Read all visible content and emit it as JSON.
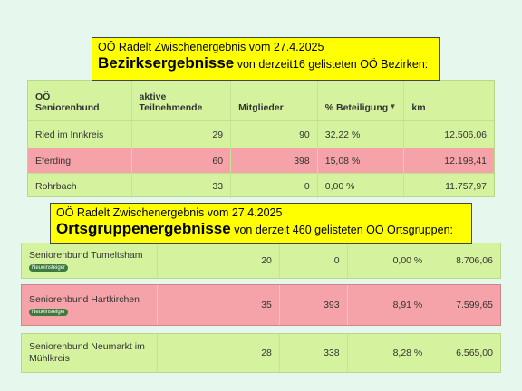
{
  "banner_district": {
    "line1": "OÖ Radelt Zwischenergebnis vom 27.4.2025",
    "title": "Bezirksergebnisse",
    "subtitle": " von derzeit16 gelisteten OÖ Bezirken:"
  },
  "district_table": {
    "headers": [
      "OÖ\nSeniorenbund",
      "aktive\nTeilnehmende",
      "Mitglieder",
      "% Beteiligung",
      "km"
    ],
    "rows": [
      {
        "name": "Ried im Innkreis",
        "aktive": "29",
        "mitglieder": "90",
        "beteiligung": "32,22 %",
        "km": "12.506,06"
      },
      {
        "name": "Eferding",
        "aktive": "60",
        "mitglieder": "398",
        "beteiligung": "15,08 %",
        "km": "12.198,41"
      },
      {
        "name": "Rohrbach",
        "aktive": "33",
        "mitglieder": "0",
        "beteiligung": "0,00 %",
        "km": "11.757,97"
      }
    ]
  },
  "banner_local": {
    "line1": "OÖ Radelt Zwischenergebnis vom 27.4.2025",
    "title": "Ortsgruppenergebnisse",
    "subtitle": " von derzeit 460 gelisteten OÖ Ortsgruppen:"
  },
  "local_table": {
    "rows": [
      {
        "name": "Seniorenbund Tumeltsham",
        "badge": "Neueinsteiger",
        "aktive": "20",
        "mitglieder": "0",
        "beteiligung": "0,00 %",
        "km": "8.706,06"
      },
      {
        "name": "Seniorenbund Hartkirchen",
        "badge": "Neueinsteiger",
        "aktive": "35",
        "mitglieder": "393",
        "beteiligung": "8,91 %",
        "km": "7.599,65"
      },
      {
        "name": "Seniorenbund Neumarkt im Mühlkreis",
        "aktive": "28",
        "mitglieder": "338",
        "beteiligung": "8,28 %",
        "km": "6.565,00"
      }
    ]
  },
  "colors": {
    "background": "#e6f8ee",
    "banner": "#ffff00",
    "table": "#d5f39f",
    "highlight_row": "#f5a3a8"
  },
  "icons": {
    "sort": "sort-down-icon"
  }
}
